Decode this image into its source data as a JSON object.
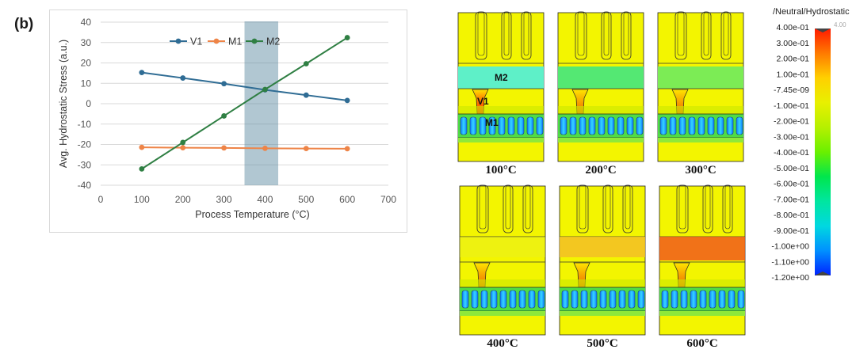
{
  "panel_label": "(b)",
  "chart_data": [
    {
      "type": "line",
      "title": "",
      "xlabel": "Process Temperature (°C)",
      "ylabel": "Avg. Hydrostatic Stress (a.u.)",
      "xlim": [
        0,
        700
      ],
      "ylim": [
        -40,
        40
      ],
      "xticks": [
        0,
        100,
        200,
        300,
        400,
        500,
        600,
        700
      ],
      "yticks": [
        -40,
        -30,
        -20,
        -10,
        0,
        10,
        20,
        30,
        40
      ],
      "grid": "horizontal",
      "legend_position": "top",
      "highlight_band": {
        "x_range": [
          350,
          432
        ],
        "color": "#5b8aa0"
      },
      "x": [
        100,
        200,
        300,
        400,
        500,
        600
      ],
      "series": [
        {
          "name": "V1",
          "color": "#2f6c94",
          "values": [
            15.3,
            12.6,
            9.8,
            6.8,
            4.2,
            1.6
          ]
        },
        {
          "name": "M1",
          "color": "#ee8447",
          "values": [
            -21.4,
            -21.6,
            -21.7,
            -21.9,
            -22.0,
            -22.1
          ]
        },
        {
          "name": "M2",
          "color": "#2f7f43",
          "values": [
            -32.0,
            -19.0,
            -6.0,
            7.0,
            19.6,
            32.4
          ]
        }
      ]
    },
    {
      "type": "heatmap",
      "panels": [
        {
          "label": "100°C",
          "m2_color": "#5ef0c8"
        },
        {
          "label": "200°C",
          "m2_color": "#54e873"
        },
        {
          "label": "300°C",
          "m2_color": "#7cec55"
        },
        {
          "label": "400°C",
          "m2_color": "#e6ef2d"
        },
        {
          "label": "500°C",
          "m2_color": "#f2be26"
        },
        {
          "label": "600°C",
          "m2_color": "#f05a1c"
        }
      ],
      "region_labels": {
        "m2": "M2",
        "v1": "V1",
        "m1": "M1"
      },
      "colorbar": {
        "title": "/Neutral/Hydrostatic",
        "max_marker": "4.00",
        "ticks": [
          "4.00e-01",
          "3.00e-01",
          "2.00e-01",
          "1.00e-01",
          "-7.45e-09",
          "-1.00e-01",
          "-2.00e-01",
          "-3.00e-01",
          "-4.00e-01",
          "-5.00e-01",
          "-6.00e-01",
          "-7.00e-01",
          "-8.00e-01",
          "-9.00e-01",
          "-1.00e+00",
          "-1.10e+00",
          "-1.20e+00"
        ],
        "colors": [
          "#ff1a00",
          "#ff7a00",
          "#ffd000",
          "#e8f000",
          "#b6f000",
          "#6af000",
          "#00e64d",
          "#00e6a0",
          "#00d8e0",
          "#0090ff",
          "#0022ff"
        ]
      }
    }
  ]
}
